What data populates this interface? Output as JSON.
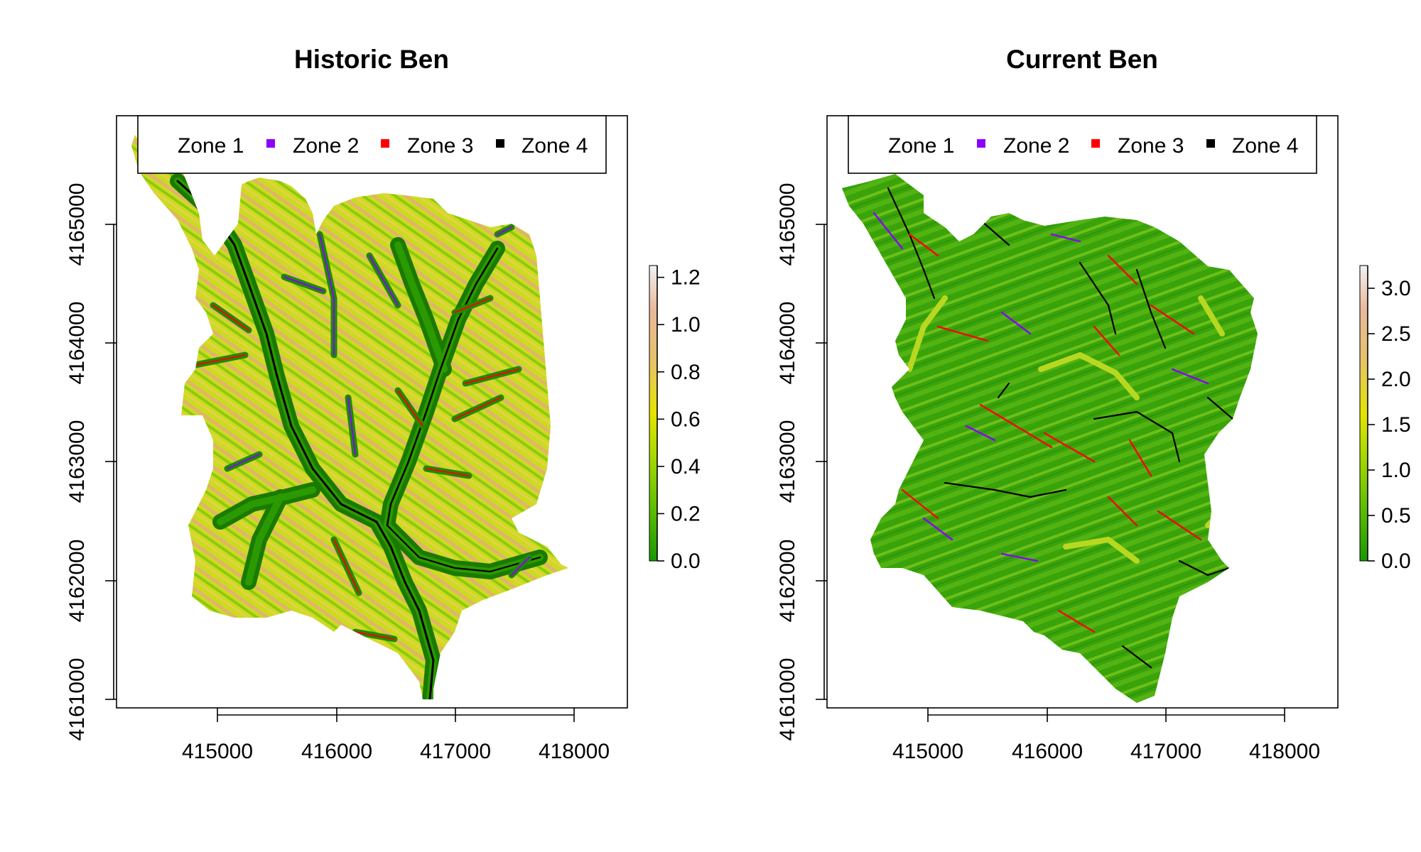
{
  "colors": {
    "zone1": "#1a9800",
    "zone2": "#8a00ff",
    "zone3": "#ff0000",
    "zone4": "#000000",
    "ramp": [
      "#1a9800",
      "#5fbf00",
      "#a6d800",
      "#e6e400",
      "#e8c26a",
      "#eab89b",
      "#f2f2f2"
    ]
  },
  "panels": [
    {
      "title": "Historic Ben",
      "xticks": [
        "415000",
        "416000",
        "417000",
        "418000"
      ],
      "yticks": [
        "4161000",
        "4162000",
        "4163000",
        "4164000",
        "4165000"
      ],
      "legend": [
        "Zone 1",
        "Zone 2",
        "Zone 3",
        "Zone 4"
      ],
      "colorbar_ticks": [
        "0.0",
        "0.2",
        "0.4",
        "0.6",
        "0.8",
        "1.0",
        "1.2"
      ],
      "colorbar_max": 1.25,
      "style": "historic"
    },
    {
      "title": "Current Ben",
      "xticks": [
        "415000",
        "416000",
        "417000",
        "418000"
      ],
      "yticks": [
        "4161000",
        "4162000",
        "4163000",
        "4164000",
        "4165000"
      ],
      "legend": [
        "Zone 1",
        "Zone 2",
        "Zone 3",
        "Zone 4"
      ],
      "colorbar_ticks": [
        "0.0",
        "0.5",
        "1.0",
        "1.5",
        "2.0",
        "2.5",
        "3.0"
      ],
      "colorbar_max": 3.25,
      "style": "current"
    }
  ],
  "chart_data": [
    {
      "type": "heatmap",
      "title": "Historic Ben",
      "x_ticks": [
        415000,
        416000,
        417000,
        418000
      ],
      "y_ticks": [
        4161000,
        4162000,
        4163000,
        4164000,
        4165000
      ],
      "value_range": [
        0.0,
        1.25
      ],
      "colorbar_ticks": [
        0.0,
        0.2,
        0.4,
        0.6,
        0.8,
        1.0,
        1.2
      ],
      "legend": [
        "Zone 1",
        "Zone 2",
        "Zone 3",
        "Zone 4"
      ],
      "legend_placement": "top"
    },
    {
      "type": "heatmap",
      "title": "Current Ben",
      "x_ticks": [
        415000,
        416000,
        417000,
        418000
      ],
      "y_ticks": [
        4161000,
        4162000,
        4163000,
        4164000,
        4165000
      ],
      "value_range": [
        0.0,
        3.25
      ],
      "colorbar_ticks": [
        0.0,
        0.5,
        1.0,
        1.5,
        2.0,
        2.5,
        3.0
      ],
      "legend": [
        "Zone 1",
        "Zone 2",
        "Zone 3",
        "Zone 4"
      ],
      "legend_placement": "top"
    }
  ]
}
